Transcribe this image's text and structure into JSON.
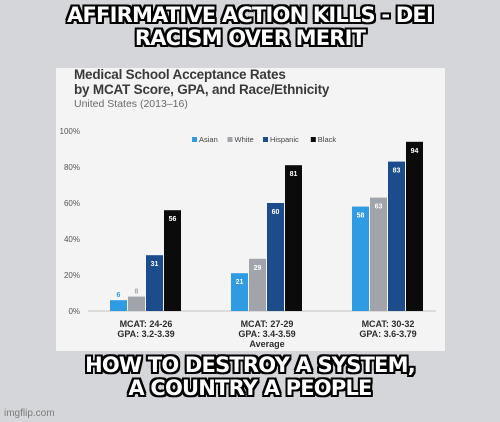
{
  "meme": {
    "top_lines": [
      "AFFIRMATIVE ACTION KILLS - DEI",
      "RACISM OVER MERIT"
    ],
    "bottom_lines": [
      "HOW TO DESTROY A SYSTEM,",
      "A COUNTRY A PEOPLE"
    ],
    "watermark": "imgflip.com"
  },
  "chart_data": {
    "type": "bar",
    "title_lines": [
      "Medical School Acceptance Rates",
      "by MCAT Score, GPA, and Race/Ethnicity"
    ],
    "subtitle": "United States (2013–16)",
    "categories": [
      [
        "MCAT: 24-26",
        "GPA: 3.2-3.39"
      ],
      [
        "MCAT: 27-29",
        "GPA: 3.4-3.59",
        "Average"
      ],
      [
        "MCAT: 30-32",
        "GPA: 3.6-3.79"
      ]
    ],
    "series": [
      {
        "name": "Asian",
        "color": "#2f9be3",
        "values": [
          6,
          21,
          58
        ]
      },
      {
        "name": "White",
        "color": "#a2a4ab",
        "values": [
          8,
          29,
          63
        ]
      },
      {
        "name": "Hispanic",
        "color": "#1c4c8c",
        "values": [
          31,
          60,
          83
        ]
      },
      {
        "name": "Black",
        "color": "#0b0b0b",
        "values": [
          56,
          81,
          94
        ]
      }
    ],
    "ylim": [
      0,
      100
    ],
    "yticks": [
      "0%",
      "20%",
      "40%",
      "60%",
      "80%",
      "100%"
    ],
    "legend_position": "top-right",
    "grid": false
  }
}
